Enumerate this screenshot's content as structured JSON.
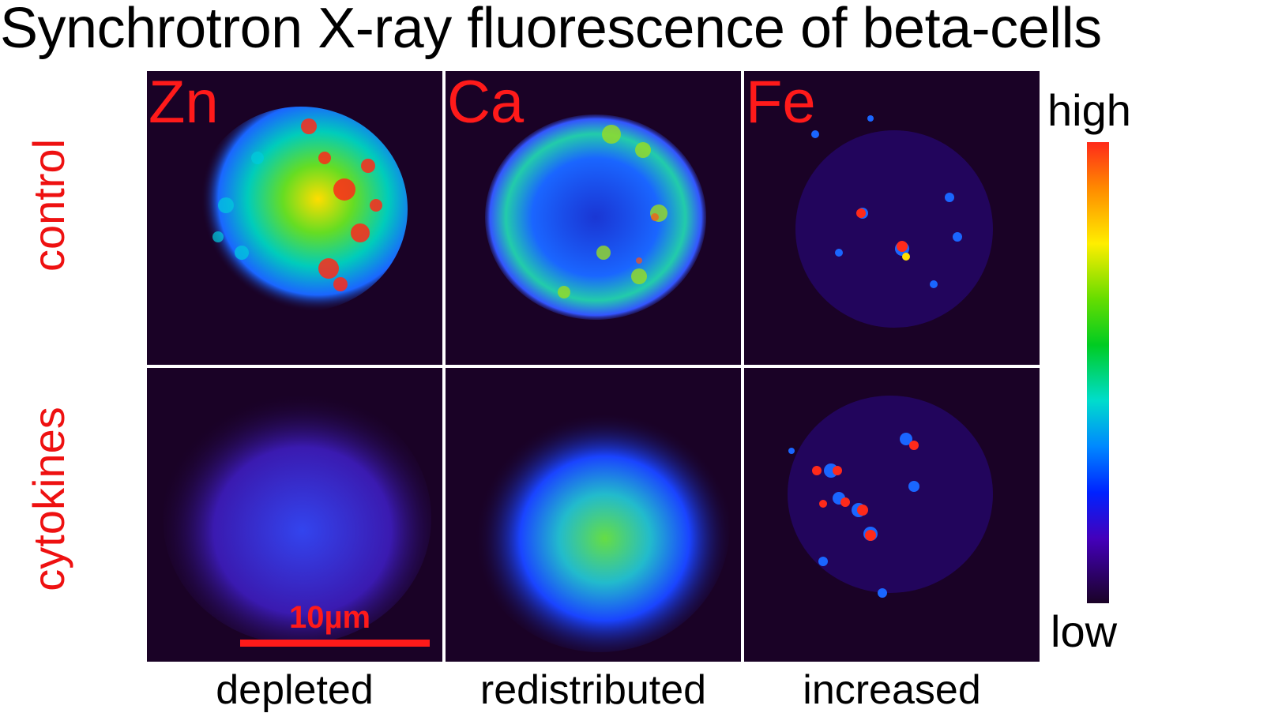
{
  "figure": {
    "title": "Synchrotron X-ray fluorescence of beta-cells",
    "rows": [
      {
        "label": "control"
      },
      {
        "label": "cytokines"
      }
    ],
    "columns": [
      {
        "element": "Zn",
        "caption": "depleted"
      },
      {
        "element": "Ca",
        "caption": "redistributed"
      },
      {
        "element": "Fe",
        "caption": "increased"
      }
    ],
    "scale_bar": {
      "label": "10µm"
    },
    "colorbar": {
      "high_label": "high",
      "low_label": "low",
      "colors": [
        "#ff2a1a",
        "#ff8a00",
        "#ffee00",
        "#66dd00",
        "#00cc22",
        "#00ddcc",
        "#0088ff",
        "#0022ff",
        "#4400bb",
        "#1a0226"
      ]
    },
    "colors": {
      "label_red": "#ff1a1a",
      "background": "#1a0226"
    }
  }
}
